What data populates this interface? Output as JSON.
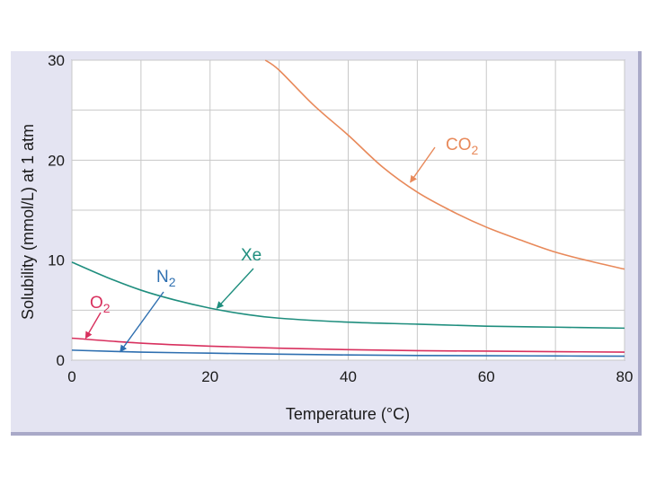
{
  "chart_data": {
    "type": "line",
    "title": "",
    "xlabel": "Temperature (°C)",
    "ylabel": "Solubility (mmol/L) at 1 atm",
    "xlim": [
      0,
      80
    ],
    "ylim": [
      0,
      30
    ],
    "xticks": [
      0,
      20,
      40,
      60,
      80
    ],
    "yticks": [
      0,
      10,
      20,
      30
    ],
    "grid": true,
    "series": [
      {
        "name": "CO2",
        "color": "#e8895a",
        "x": [
          28,
          30,
          35,
          40,
          45,
          50,
          55,
          60,
          65,
          70,
          75,
          80
        ],
        "y": [
          30,
          29.0,
          25.5,
          22.5,
          19.3,
          16.8,
          14.9,
          13.3,
          12.0,
          10.8,
          9.9,
          9.1
        ]
      },
      {
        "name": "Xe",
        "color": "#1f8e7e",
        "x": [
          0,
          5,
          10,
          15,
          20,
          25,
          30,
          40,
          50,
          60,
          70,
          80
        ],
        "y": [
          9.8,
          8.3,
          7.0,
          6.0,
          5.2,
          4.6,
          4.2,
          3.8,
          3.6,
          3.4,
          3.3,
          3.2
        ]
      },
      {
        "name": "O2",
        "color": "#d8305e",
        "x": [
          0,
          10,
          20,
          30,
          40,
          50,
          60,
          70,
          80
        ],
        "y": [
          2.2,
          1.7,
          1.4,
          1.2,
          1.05,
          0.95,
          0.9,
          0.85,
          0.8
        ]
      },
      {
        "name": "N2",
        "color": "#2e6fb0",
        "x": [
          0,
          10,
          20,
          30,
          40,
          50,
          60,
          70,
          80
        ],
        "y": [
          1.0,
          0.8,
          0.7,
          0.6,
          0.52,
          0.47,
          0.44,
          0.42,
          0.4
        ]
      }
    ],
    "annotations": [
      {
        "series": "CO2",
        "main": "CO",
        "sub": "2",
        "color": "#e8895a",
        "arrow_x": 49,
        "arrow_y": 17.8
      },
      {
        "series": "Xe",
        "main": "Xe",
        "sub": "",
        "color": "#1f8e7e",
        "arrow_x": 21,
        "arrow_y": 5.2
      },
      {
        "series": "N2",
        "main": "N",
        "sub": "2",
        "color": "#2e6fb0",
        "arrow_x": 7,
        "arrow_y": 0.85
      },
      {
        "series": "O2",
        "main": "O",
        "sub": "2",
        "color": "#d8305e",
        "arrow_x": 2,
        "arrow_y": 2.2
      }
    ]
  }
}
